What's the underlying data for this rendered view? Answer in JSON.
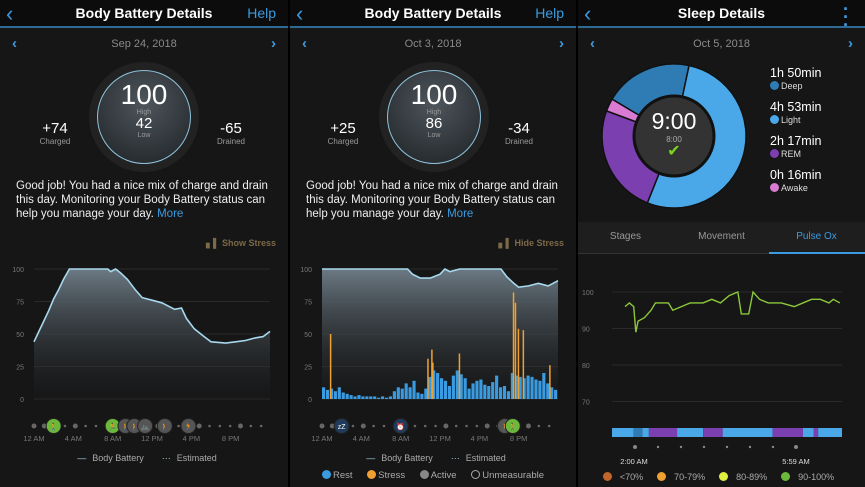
{
  "colors": {
    "accent": "#3a9be0",
    "battery_line": "#a8d8ee",
    "rest": "#3a9be0",
    "stress": "#f0a030",
    "active": "#888888",
    "deep": "#2f7cb5",
    "light": "#4aa8e8",
    "rem": "#7b3fb0",
    "awake": "#d97ad3",
    "spo2_line": "#8bc83a"
  },
  "screens": [
    {
      "header": {
        "title": "Body Battery Details",
        "help": "Help",
        "back_icon": "chevron-left"
      },
      "date": "Sep 24, 2018",
      "gauge": {
        "high": "100",
        "high_label": "High",
        "low": "42",
        "low_label": "Low"
      },
      "charged": {
        "value": "+74",
        "label": "Charged"
      },
      "drained": {
        "value": "-65",
        "label": "Drained"
      },
      "message": "Good job! You had a nice mix of charge and drain this day. Monitoring your Body Battery status can help you manage your day.",
      "more": "More",
      "stress_toggle": "Show Stress",
      "legend": {
        "body_battery": "Body Battery",
        "estimated": "Estimated"
      }
    },
    {
      "header": {
        "title": "Body Battery Details",
        "help": "Help",
        "back_icon": "chevron-left"
      },
      "date": "Oct 3, 2018",
      "gauge": {
        "high": "100",
        "high_label": "High",
        "low": "86",
        "low_label": "Low"
      },
      "charged": {
        "value": "+25",
        "label": "Charged"
      },
      "drained": {
        "value": "-34",
        "label": "Drained"
      },
      "message": "Good job! You had a nice mix of charge and drain this day. Monitoring your Body Battery status can help you manage your day.",
      "more": "More",
      "stress_toggle": "Hide Stress",
      "legend": {
        "body_battery": "Body Battery",
        "estimated": "Estimated",
        "rest": "Rest",
        "stress": "Stress",
        "active": "Active",
        "unmeasurable": "Unmeasurable"
      }
    },
    {
      "header": {
        "title": "Sleep Details",
        "back_icon": "chevron-left",
        "menu_icon": "more-vertical"
      },
      "date": "Oct 5, 2018",
      "center": {
        "total": "9:00",
        "goal": "8:00",
        "status_icon": "checkmark"
      },
      "stages": [
        {
          "duration": "1h 50min",
          "label": "Deep",
          "minutes": 110
        },
        {
          "duration": "4h 53min",
          "label": "Light",
          "minutes": 293
        },
        {
          "duration": "2h 17min",
          "label": "REM",
          "minutes": 137
        },
        {
          "duration": "0h 16min",
          "label": "Awake",
          "minutes": 16
        }
      ],
      "tabs": [
        "Stages",
        "Movement",
        "Pulse Ox"
      ],
      "active_tab": "Pulse Ox",
      "spo2_legend": [
        {
          "label": "<70%",
          "color": "#c0662a"
        },
        {
          "label": "70-79%",
          "color": "#f0a030"
        },
        {
          "label": "80-89%",
          "color": "#e0f040"
        },
        {
          "label": "90-100%",
          "color": "#6cb83a"
        }
      ]
    }
  ],
  "chart_data": [
    {
      "type": "area",
      "title": "",
      "x_unit": "hour",
      "xlim": [
        0,
        24
      ],
      "ylim": [
        0,
        100
      ],
      "yticks": [
        0,
        25,
        50,
        75,
        100
      ],
      "xticks": [
        "12 AM",
        "4 AM",
        "8 AM",
        "12 PM",
        "4 PM",
        "8 PM"
      ],
      "series": [
        {
          "name": "Body Battery",
          "points": [
            [
              0,
              44
            ],
            [
              0.5,
              52
            ],
            [
              1,
              60
            ],
            [
              1.5,
              68
            ],
            [
              2,
              77
            ],
            [
              2.5,
              84
            ],
            [
              3,
              92
            ],
            [
              3.6,
              100
            ],
            [
              7.5,
              100
            ],
            [
              7.8,
              98
            ],
            [
              8.3,
              100
            ],
            [
              8.8,
              97
            ],
            [
              9.5,
              92
            ],
            [
              10.3,
              84
            ],
            [
              11,
              78
            ],
            [
              12,
              76
            ],
            [
              13,
              74
            ],
            [
              14.3,
              69
            ],
            [
              15,
              70
            ],
            [
              15.5,
              62
            ],
            [
              16.3,
              54
            ],
            [
              17.3,
              48
            ],
            [
              18,
              44
            ],
            [
              19.5,
              43
            ],
            [
              20.5,
              44
            ],
            [
              21.5,
              45
            ],
            [
              22.5,
              47
            ],
            [
              23.3,
              48
            ],
            [
              24,
              52
            ]
          ]
        }
      ],
      "events": [
        {
          "hour": 2,
          "kind": "walk",
          "color": "green"
        },
        {
          "hour": 8,
          "kind": "run",
          "color": "green"
        },
        {
          "hour": 9.3,
          "kind": "stack",
          "color": "gray"
        },
        {
          "hour": 10.2,
          "kind": "walk",
          "color": "gray"
        },
        {
          "hour": 11.3,
          "kind": "bike",
          "color": "gray"
        },
        {
          "hour": 13.3,
          "kind": "walk",
          "color": "gray"
        },
        {
          "hour": 15.7,
          "kind": "run",
          "color": "gray"
        }
      ]
    },
    {
      "type": "area",
      "title": "",
      "x_unit": "hour",
      "xlim": [
        0,
        24
      ],
      "ylim": [
        0,
        100
      ],
      "yticks": [
        0,
        25,
        50,
        75,
        100
      ],
      "xticks": [
        "12 AM",
        "4 AM",
        "8 AM",
        "12 PM",
        "4 PM",
        "8 PM"
      ],
      "series": [
        {
          "name": "Body Battery",
          "points": [
            [
              0,
              100
            ],
            [
              8.7,
              100
            ],
            [
              9.2,
              96
            ],
            [
              10,
              93
            ],
            [
              11,
              93
            ],
            [
              12,
              96
            ],
            [
              12.5,
              100
            ],
            [
              13,
              98
            ],
            [
              14,
              100
            ],
            [
              18.2,
              100
            ],
            [
              18.8,
              94
            ],
            [
              19.5,
              89
            ],
            [
              20,
              86
            ],
            [
              21,
              87
            ],
            [
              22,
              89
            ],
            [
              23,
              87
            ],
            [
              24,
              91
            ]
          ]
        }
      ],
      "rest": [
        9,
        7,
        8,
        6,
        9,
        5,
        4,
        3,
        2,
        3,
        2,
        2,
        2,
        2,
        1,
        2,
        1,
        2,
        6,
        9,
        8,
        12,
        9,
        14,
        5,
        4,
        8,
        17,
        22,
        20,
        16,
        14,
        10,
        18,
        22,
        19,
        16,
        8,
        12,
        14,
        15,
        11,
        10,
        13,
        18,
        9,
        10,
        6,
        20,
        18,
        17,
        16,
        18,
        17,
        15,
        14,
        20,
        12,
        9,
        7
      ],
      "stress": [
        {
          "hour": 0.8,
          "value": 50
        },
        {
          "hour": 10.7,
          "value": 31
        },
        {
          "hour": 11.1,
          "value": 38
        },
        {
          "hour": 11.2,
          "value": 28
        },
        {
          "hour": 13.9,
          "value": 35
        },
        {
          "hour": 19.4,
          "value": 82
        },
        {
          "hour": 19.6,
          "value": 74
        },
        {
          "hour": 19.9,
          "value": 54
        },
        {
          "hour": 20.4,
          "value": 53
        },
        {
          "hour": 23.1,
          "value": 26
        }
      ],
      "events": [
        {
          "hour": 2,
          "kind": "sleep",
          "color": "navy"
        },
        {
          "hour": 8,
          "kind": "alarm",
          "color": "navy"
        },
        {
          "hour": 18.6,
          "kind": "walk",
          "color": "gray"
        },
        {
          "hour": 19.4,
          "kind": "walk",
          "color": "green"
        }
      ]
    },
    {
      "type": "line",
      "title": "Pulse Ox",
      "xlim": [
        1.6,
        6.9
      ],
      "ylim": [
        62,
        104
      ],
      "yticks": [
        70,
        80,
        90,
        100
      ],
      "xticks": [
        "2:00 AM",
        "5:59 AM"
      ],
      "series": [
        {
          "points": [
            [
              1.9,
              96
            ],
            [
              2.0,
              97
            ],
            [
              2.1,
              96
            ],
            [
              2.15,
              89
            ],
            [
              2.2,
              92
            ],
            [
              2.35,
              93
            ],
            [
              2.5,
              95
            ],
            [
              2.6,
              97
            ],
            [
              2.9,
              97
            ],
            [
              3.0,
              95
            ],
            [
              3.2,
              96
            ],
            [
              3.4,
              97
            ],
            [
              3.7,
              97
            ],
            [
              3.9,
              98
            ],
            [
              4.1,
              97
            ],
            [
              4.3,
              99
            ],
            [
              4.5,
              100
            ],
            [
              4.58,
              94
            ],
            [
              4.75,
              94
            ],
            [
              4.85,
              100
            ],
            [
              5.0,
              98
            ],
            [
              5.2,
              97
            ],
            [
              5.5,
              97
            ],
            [
              5.8,
              96
            ],
            [
              6.0,
              97
            ],
            [
              6.2,
              98
            ],
            [
              6.4,
              98
            ],
            [
              6.6,
              97
            ],
            [
              6.7,
              98
            ],
            [
              6.85,
              97
            ]
          ]
        }
      ],
      "stage_bar": [
        [
          "light",
          1.6,
          2.1
        ],
        [
          "deep",
          2.1,
          2.3
        ],
        [
          "light",
          2.3,
          2.45
        ],
        [
          "rem",
          2.45,
          3.1
        ],
        [
          "light",
          3.1,
          3.7
        ],
        [
          "rem",
          3.7,
          4.15
        ],
        [
          "light",
          4.15,
          5.3
        ],
        [
          "rem",
          5.3,
          6.0
        ],
        [
          "light",
          6.0,
          6.25
        ],
        [
          "rem",
          6.25,
          6.35
        ],
        [
          "light",
          6.35,
          6.9
        ]
      ]
    }
  ]
}
